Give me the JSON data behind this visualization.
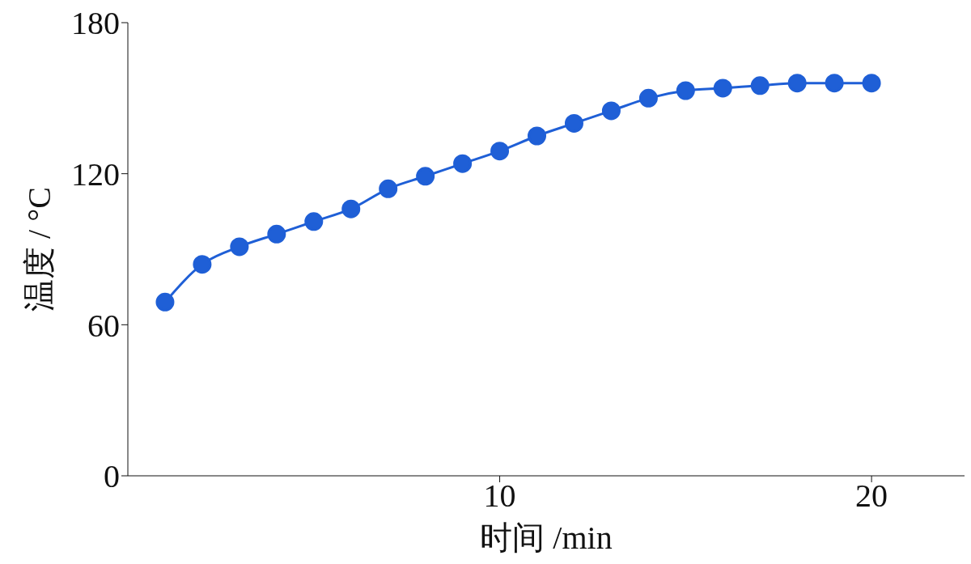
{
  "chart_data": {
    "type": "line",
    "xlabel": "时间 /min",
    "ylabel": "温度 / °C",
    "x": [
      1,
      2,
      3,
      4,
      5,
      6,
      7,
      8,
      9,
      10,
      11,
      12,
      13,
      14,
      15,
      16,
      17,
      18,
      19,
      20
    ],
    "series": [
      {
        "color": "#1f5fd6",
        "values": [
          69,
          84,
          91,
          96,
          101,
          106,
          114,
          119,
          124,
          129,
          135,
          140,
          145,
          150,
          153,
          154,
          155,
          156,
          156,
          156
        ]
      }
    ],
    "xlim": [
      0,
      22.5
    ],
    "xticks": [
      10,
      20
    ],
    "ylim": [
      0,
      180
    ],
    "yticks": [
      0,
      60,
      120,
      180
    ],
    "grid": false,
    "legend": false,
    "marker": "circle",
    "line_style": "solid"
  }
}
